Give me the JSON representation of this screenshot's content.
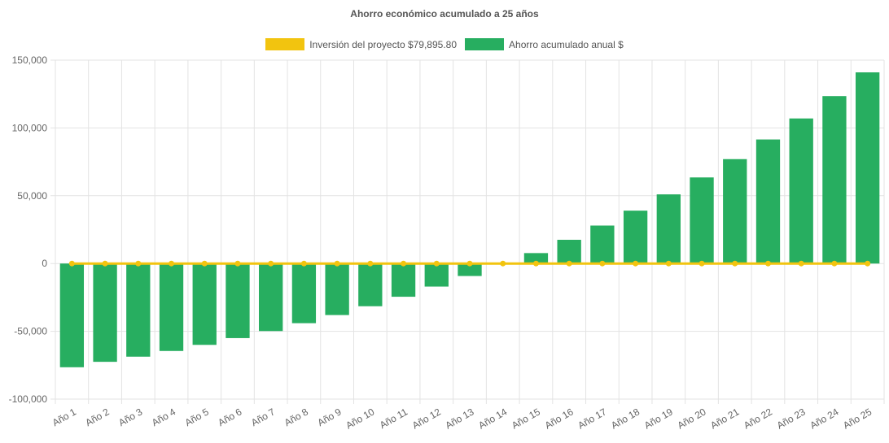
{
  "chart_data": {
    "type": "bar",
    "title": "Ahorro económico acumulado a 25 años",
    "xlabel": "",
    "ylabel": "",
    "ylim": [
      -100000,
      150000
    ],
    "yticks": [
      150000,
      100000,
      50000,
      0,
      -50000,
      -100000
    ],
    "ytick_labels": [
      "150,000",
      "100,000",
      "50,000",
      "0",
      "-50,000",
      "-100,000"
    ],
    "categories": [
      "Año 1",
      "Año 2",
      "Año 3",
      "Año 4",
      "Año 5",
      "Año 6",
      "Año 7",
      "Año 8",
      "Año 9",
      "Año 10",
      "Año 11",
      "Año 12",
      "Año 13",
      "Año 14",
      "Año 15",
      "Año 16",
      "Año 17",
      "Año 18",
      "Año 19",
      "Año 20",
      "Año 21",
      "Año 22",
      "Año 23",
      "Año 24",
      "Año 25"
    ],
    "grid": true,
    "legend_position": "top-center",
    "series": [
      {
        "name": "Inversión del proyecto $79,895.80",
        "type": "line",
        "color": "#f2c40f",
        "values": [
          0,
          0,
          0,
          0,
          0,
          0,
          0,
          0,
          0,
          0,
          0,
          0,
          0,
          0,
          0,
          0,
          0,
          0,
          0,
          0,
          0,
          0,
          0,
          0,
          0
        ]
      },
      {
        "name": "Ahorro acumulado anual $",
        "type": "bar",
        "color": "#27ae60",
        "values": [
          -76500,
          -72500,
          -68700,
          -64500,
          -60000,
          -55000,
          -49800,
          -44000,
          -38000,
          -31500,
          -24500,
          -17000,
          -9200,
          0,
          7700,
          17500,
          28000,
          39000,
          51000,
          63500,
          77000,
          91500,
          107000,
          123500,
          141000
        ]
      }
    ]
  }
}
